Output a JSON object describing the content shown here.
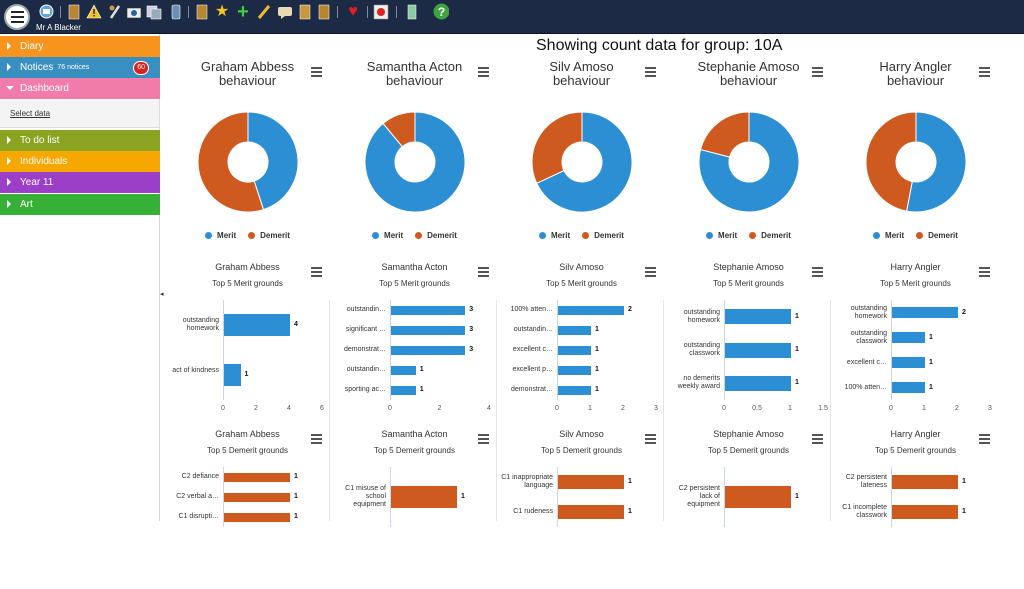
{
  "toolbar": {
    "user_name": "Mr A Blacker",
    "icons": [
      "home-icon",
      "notebook-icon",
      "warning-icon",
      "pen-icon",
      "camera-icon",
      "copy-icon",
      "phone-icon",
      "book-icon",
      "star-icon",
      "plus-icon",
      "pencil-icon",
      "chat-icon",
      "scroll-icon",
      "files-icon",
      "heart-icon",
      "record-icon",
      "door-icon",
      "help-icon"
    ]
  },
  "sidebar": {
    "items": [
      {
        "label": "Diary",
        "color": "#f7941d"
      },
      {
        "label": "Notices",
        "small": "76 notices",
        "badge": "60",
        "color": "#3a8fc1"
      },
      {
        "label": "Dashboard",
        "color": "#f27ca9",
        "open": true
      },
      {
        "label": "To do list",
        "color": "#8aa321"
      },
      {
        "label": "Individuals",
        "color": "#f7a800"
      },
      {
        "label": "Year 11",
        "color": "#9b3ec8"
      },
      {
        "label": "Art",
        "color": "#36b036"
      }
    ],
    "select_data": "Select data"
  },
  "main": {
    "title": "Showing count data for group: 10A"
  },
  "colors": {
    "merit": "#2d8fd3",
    "demerit": "#cf5a1f"
  },
  "legend": {
    "merit": "Merit",
    "demerit": "Demerit"
  },
  "pies": [
    {
      "name": "Graham Abbess",
      "title": "Graham Abbess behaviour",
      "merit": 4.5,
      "demerit": 5.5
    },
    {
      "name": "Samantha Acton",
      "title": "Samantha Acton behaviour",
      "merit": 8.9,
      "demerit": 1.1
    },
    {
      "name": "Silv Amoso",
      "title": "Silv Amoso behaviour",
      "merit": 6.8,
      "demerit": 3.2
    },
    {
      "name": "Stephanie Amoso",
      "title": "Stephanie Amoso behaviour",
      "merit": 7.9,
      "demerit": 2.1
    },
    {
      "name": "Harry Angler",
      "title": "Harry Angler behaviour",
      "merit": 5.3,
      "demerit": 4.7
    }
  ],
  "merit_subtitle": "Top 5 Merit grounds",
  "demerit_subtitle": "Top 5 Demerit grounds",
  "merit_charts": [
    {
      "name": "Graham Abbess",
      "max": 6,
      "ticks": [
        "0",
        "2",
        "4",
        "6"
      ],
      "bars": [
        {
          "label": "outstanding homework",
          "value": 4
        },
        {
          "label": "act of kindness",
          "value": 1
        }
      ]
    },
    {
      "name": "Samantha Acton",
      "max": 4,
      "ticks": [
        "0",
        "2",
        "4"
      ],
      "bars": [
        {
          "label": "outstandin…",
          "value": 3
        },
        {
          "label": "significant …",
          "value": 3
        },
        {
          "label": "demonstrat…",
          "value": 3
        },
        {
          "label": "outstandin…",
          "value": 1
        },
        {
          "label": "sporting ac…",
          "value": 1
        }
      ]
    },
    {
      "name": "Silv Amoso",
      "max": 3,
      "ticks": [
        "0",
        "1",
        "2",
        "3"
      ],
      "bars": [
        {
          "label": "100% atten…",
          "value": 2
        },
        {
          "label": "outstandin…",
          "value": 1
        },
        {
          "label": "excellent c…",
          "value": 1
        },
        {
          "label": "excellent p…",
          "value": 1
        },
        {
          "label": "demonstrat…",
          "value": 1
        }
      ]
    },
    {
      "name": "Stephanie Amoso",
      "max": 1.5,
      "ticks": [
        "0",
        "0.5",
        "1",
        "1.5"
      ],
      "bars": [
        {
          "label": "outstanding homework",
          "value": 1
        },
        {
          "label": "outstanding classwork",
          "value": 1
        },
        {
          "label": "no demerits weekly award",
          "value": 1
        }
      ]
    },
    {
      "name": "Harry Angler",
      "max": 3,
      "ticks": [
        "0",
        "1",
        "2",
        "3"
      ],
      "bars": [
        {
          "label": "outstanding homework",
          "value": 2
        },
        {
          "label": "outstanding classwork",
          "value": 1
        },
        {
          "label": "excellent c…",
          "value": 1
        },
        {
          "label": "100% atten…",
          "value": 1
        }
      ]
    }
  ],
  "demerit_charts": [
    {
      "name": "Graham Abbess",
      "max": 1.5,
      "bars": [
        {
          "label": "C2 defiance",
          "value": 1
        },
        {
          "label": "C2 verbal a…",
          "value": 1
        },
        {
          "label": "C1 disrupti…",
          "value": 1
        }
      ]
    },
    {
      "name": "Samantha Acton",
      "max": 1.5,
      "bars": [
        {
          "label": "C1 misuse of school equipment",
          "value": 1
        }
      ]
    },
    {
      "name": "Silv Amoso",
      "max": 1.5,
      "bars": [
        {
          "label": "C1 inappropriate language",
          "value": 1
        },
        {
          "label": "C1 rudeness",
          "value": 1
        }
      ]
    },
    {
      "name": "Stephanie Amoso",
      "max": 1.5,
      "bars": [
        {
          "label": "C2 persistent lack of equipment",
          "value": 1
        }
      ]
    },
    {
      "name": "Harry Angler",
      "max": 1.5,
      "bars": [
        {
          "label": "C2 persistent lateness",
          "value": 1
        },
        {
          "label": "C1 incomplete classwork",
          "value": 1
        }
      ]
    }
  ]
}
